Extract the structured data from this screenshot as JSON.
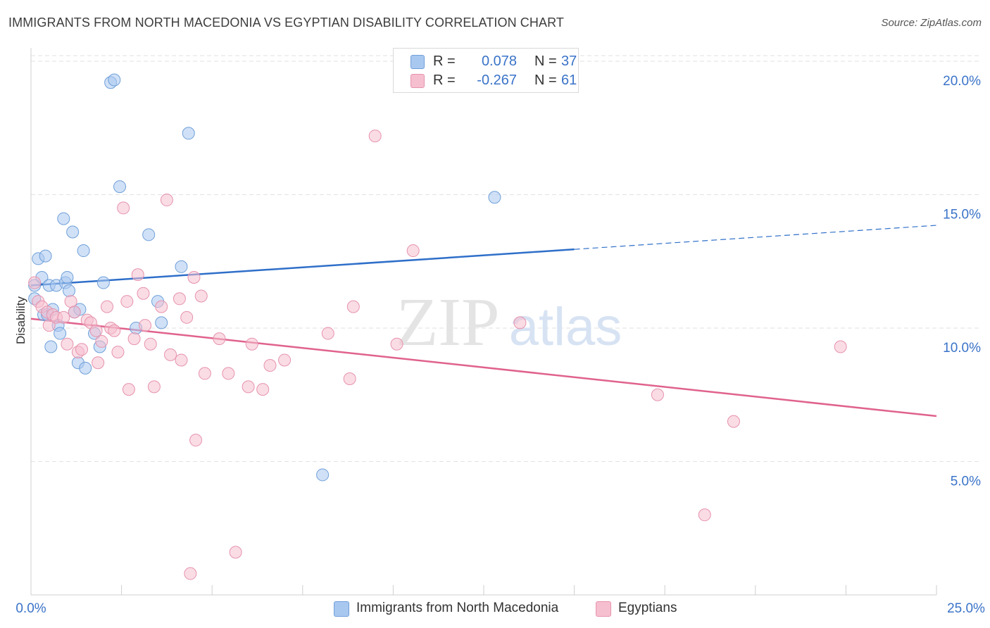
{
  "title": "IMMIGRANTS FROM NORTH MACEDONIA VS EGYPTIAN DISABILITY CORRELATION CHART",
  "source": "Source: ZipAtlas.com",
  "watermark": {
    "zip": "ZIP",
    "atlas": "atlas"
  },
  "legend": {
    "r_label": "R =",
    "n_label": "N =",
    "rows": [
      {
        "r": "0.078",
        "n": "37",
        "color": "#a9c8f0",
        "border": "#6f9fd8"
      },
      {
        "r": "-0.267",
        "n": "61",
        "color": "#f6bfd0",
        "border": "#e693ad"
      }
    ]
  },
  "bottom_legend": [
    {
      "label": "Immigrants from North Macedonia",
      "color": "#a9c8f0",
      "border": "#6f9fd8"
    },
    {
      "label": "Egyptians",
      "color": "#f6bfd0",
      "border": "#e693ad"
    }
  ],
  "chart_data": {
    "type": "scatter",
    "title": "IMMIGRANTS FROM NORTH MACEDONIA VS EGYPTIAN DISABILITY CORRELATION CHART",
    "xlabel": "",
    "ylabel": "Disability",
    "xlim": [
      0,
      25
    ],
    "ylim": [
      0,
      20.5
    ],
    "x_tick_labels": [
      "0.0%",
      "25.0%"
    ],
    "y_ticks": [
      5,
      10,
      15,
      20
    ],
    "y_tick_labels": [
      "5.0%",
      "10.0%",
      "15.0%",
      "20.0%"
    ],
    "grid": "horizontal dashed",
    "legend_position": "top-center",
    "series": [
      {
        "name": "Immigrants from North Macedonia",
        "color": "#6f9fd8",
        "fill": "#a9c8f0",
        "trend_color": "#2f6fc9",
        "trend": {
          "x0": 0,
          "y0": 11.6,
          "x1": 15,
          "y1": 12.95,
          "x_dash_end": 25,
          "y_dash_end": 13.85
        },
        "points": [
          [
            0.1,
            11.1
          ],
          [
            0.1,
            11.6
          ],
          [
            0.2,
            12.6
          ],
          [
            0.3,
            11.9
          ],
          [
            0.35,
            10.5
          ],
          [
            0.4,
            12.7
          ],
          [
            0.45,
            10.5
          ],
          [
            0.5,
            11.6
          ],
          [
            0.55,
            9.3
          ],
          [
            0.6,
            10.7
          ],
          [
            0.7,
            11.6
          ],
          [
            0.75,
            10.1
          ],
          [
            0.8,
            9.8
          ],
          [
            0.9,
            14.1
          ],
          [
            0.95,
            11.7
          ],
          [
            1.0,
            11.9
          ],
          [
            1.05,
            11.4
          ],
          [
            1.15,
            13.6
          ],
          [
            1.2,
            10.6
          ],
          [
            1.3,
            8.7
          ],
          [
            1.35,
            10.7
          ],
          [
            1.45,
            12.9
          ],
          [
            1.5,
            8.5
          ],
          [
            1.75,
            9.8
          ],
          [
            1.9,
            9.3
          ],
          [
            2.0,
            11.7
          ],
          [
            2.2,
            19.2
          ],
          [
            2.3,
            19.3
          ],
          [
            2.45,
            15.3
          ],
          [
            2.9,
            10.0
          ],
          [
            3.25,
            13.5
          ],
          [
            3.5,
            11.0
          ],
          [
            3.6,
            10.2
          ],
          [
            4.15,
            12.3
          ],
          [
            4.35,
            17.3
          ],
          [
            8.05,
            4.5
          ],
          [
            12.8,
            14.9
          ]
        ]
      },
      {
        "name": "Egyptians",
        "color": "#e693ad",
        "fill": "#f6bfd0",
        "trend_color": "#e0628d",
        "trend": {
          "x0": 0,
          "y0": 10.35,
          "x1": 25,
          "y1": 6.7
        },
        "points": [
          [
            0.1,
            11.7
          ],
          [
            0.2,
            11.0
          ],
          [
            0.3,
            10.8
          ],
          [
            0.45,
            10.6
          ],
          [
            0.5,
            10.1
          ],
          [
            0.6,
            10.5
          ],
          [
            0.7,
            10.4
          ],
          [
            0.9,
            10.4
          ],
          [
            1.0,
            9.4
          ],
          [
            1.1,
            11.0
          ],
          [
            1.2,
            10.6
          ],
          [
            1.3,
            9.1
          ],
          [
            1.4,
            9.2
          ],
          [
            1.55,
            10.3
          ],
          [
            1.65,
            10.2
          ],
          [
            1.8,
            9.9
          ],
          [
            1.85,
            8.7
          ],
          [
            1.95,
            9.5
          ],
          [
            2.1,
            10.8
          ],
          [
            2.2,
            10.0
          ],
          [
            2.3,
            9.9
          ],
          [
            2.4,
            9.1
          ],
          [
            2.55,
            14.5
          ],
          [
            2.65,
            11.0
          ],
          [
            2.7,
            7.7
          ],
          [
            2.85,
            9.6
          ],
          [
            2.95,
            12.0
          ],
          [
            3.1,
            11.3
          ],
          [
            3.15,
            10.1
          ],
          [
            3.3,
            9.4
          ],
          [
            3.4,
            7.8
          ],
          [
            3.6,
            10.8
          ],
          [
            3.75,
            14.8
          ],
          [
            3.85,
            9.0
          ],
          [
            4.1,
            11.1
          ],
          [
            4.15,
            8.8
          ],
          [
            4.3,
            10.4
          ],
          [
            4.4,
            0.8
          ],
          [
            4.5,
            11.9
          ],
          [
            4.55,
            5.8
          ],
          [
            4.7,
            11.2
          ],
          [
            4.8,
            8.3
          ],
          [
            5.2,
            9.6
          ],
          [
            5.45,
            8.3
          ],
          [
            5.65,
            1.6
          ],
          [
            6.0,
            7.8
          ],
          [
            6.1,
            9.4
          ],
          [
            6.4,
            7.7
          ],
          [
            6.6,
            8.6
          ],
          [
            7.0,
            8.8
          ],
          [
            8.2,
            9.8
          ],
          [
            8.8,
            8.1
          ],
          [
            8.9,
            10.8
          ],
          [
            9.5,
            17.2
          ],
          [
            10.1,
            9.4
          ],
          [
            10.55,
            12.9
          ],
          [
            13.5,
            10.2
          ],
          [
            17.3,
            7.5
          ],
          [
            18.6,
            3.0
          ],
          [
            19.4,
            6.5
          ],
          [
            22.35,
            9.3
          ]
        ]
      }
    ]
  }
}
